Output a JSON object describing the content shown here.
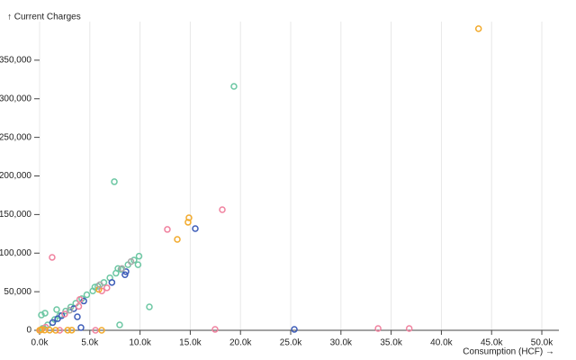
{
  "chart_data": {
    "type": "scatter",
    "y_label": "↑ Current Charges",
    "x_label": "Consumption (HCF) →",
    "xlim": [
      0,
      51700
    ],
    "ylim": [
      0,
      400000
    ],
    "xticks": [
      {
        "value": 0,
        "label": "0.0k"
      },
      {
        "value": 5000,
        "label": "5.0k"
      },
      {
        "value": 10000,
        "label": "10.0k"
      },
      {
        "value": 15000,
        "label": "15.0k"
      },
      {
        "value": 20000,
        "label": "20.0k"
      },
      {
        "value": 25000,
        "label": "25.0k"
      },
      {
        "value": 30000,
        "label": "30.0k"
      },
      {
        "value": 35000,
        "label": "35.0k"
      },
      {
        "value": 40000,
        "label": "40.0k"
      },
      {
        "value": 45000,
        "label": "45.0k"
      },
      {
        "value": 50000,
        "label": "50.0k"
      }
    ],
    "yticks": [
      0,
      {
        "value": 50000,
        "label": "50,000"
      },
      {
        "value": 100000,
        "label": "100,000"
      },
      {
        "value": 150000,
        "label": "150,000"
      },
      {
        "value": 200000,
        "label": "200,000"
      },
      {
        "value": 250000,
        "label": "250,000"
      },
      {
        "value": 300000,
        "label": "300,000"
      },
      {
        "value": 350000,
        "label": "350,000"
      }
    ],
    "grid": "x",
    "series": [
      {
        "color": "#6cc7a3",
        "x": [
          300,
          800,
          1500,
          2000,
          2600,
          3100,
          3600,
          4200,
          4700,
          5300,
          5800,
          6400,
          7000,
          7600,
          8100,
          8800,
          9400,
          9900,
          9800,
          7800,
          5500,
          19350,
          7440,
          10930,
          7970,
          180,
          540,
          1700
        ],
        "values": [
          2500,
          7000,
          14000,
          19000,
          25000,
          30000,
          35000,
          41000,
          46000,
          51000,
          57000,
          62000,
          68000,
          74000,
          79000,
          85000,
          91000,
          96000,
          85000,
          80000,
          56000,
          316000,
          192500,
          30300,
          7000,
          19800,
          22200,
          26800
        ]
      },
      {
        "color": "#3d5cb8",
        "x": [
          1300,
          1800,
          3400,
          4400,
          7200,
          8500,
          8600,
          2200,
          15500,
          25360,
          4120,
          3760
        ],
        "values": [
          10000,
          15000,
          28000,
          38000,
          62000,
          72000,
          76000,
          19000,
          131800,
          1200,
          3500,
          17500
        ]
      },
      {
        "color": "#f0829f",
        "x": [
          600,
          2500,
          3900,
          6200,
          6700,
          4000,
          100,
          2000,
          18190,
          12720,
          1250,
          17470,
          33700,
          36800,
          5560
        ],
        "values": [
          4000,
          21000,
          31000,
          51000,
          55000,
          40000,
          500,
          0,
          156300,
          130700,
          94500,
          1200,
          2300,
          2300,
          0
        ]
      },
      {
        "color": "#f2aa2c",
        "x": [
          0,
          200,
          500,
          1000,
          1600,
          3200,
          5900,
          2800,
          43700,
          14870,
          14780,
          13710,
          6180
        ],
        "values": [
          0,
          1000,
          300,
          200,
          0,
          200,
          53000,
          200,
          390800,
          145800,
          140000,
          117800,
          0
        ]
      },
      {
        "color": "#a8a8a8",
        "x": [
          9100,
          6000,
          3000,
          8200
        ],
        "values": [
          89000,
          59000,
          26000,
          80000
        ]
      }
    ]
  }
}
